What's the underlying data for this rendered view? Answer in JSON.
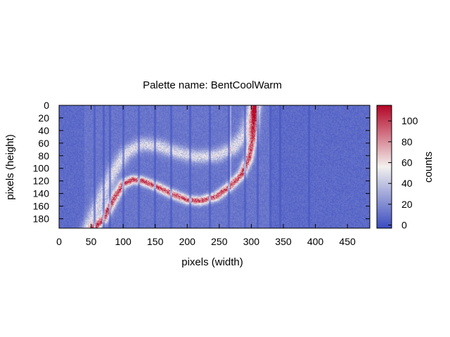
{
  "chart_data": {
    "type": "heatmap",
    "title": "Palette name: BentCoolWarm",
    "xlabel": "pixels (width)",
    "ylabel": "pixels (height)",
    "colorbar_label": "counts",
    "xlim": [
      0,
      485
    ],
    "ylim": [
      0,
      195
    ],
    "y_reversed": true,
    "clim": [
      -3,
      115
    ],
    "x_ticks": [
      0,
      50,
      100,
      150,
      200,
      250,
      300,
      350,
      400,
      450
    ],
    "y_ticks": [
      0,
      20,
      40,
      60,
      80,
      100,
      120,
      140,
      160,
      180
    ],
    "colorbar_ticks": [
      0,
      20,
      40,
      60,
      80,
      100
    ],
    "palette": {
      "name": "BentCoolWarm",
      "stops": [
        {
          "value": 0,
          "color": "#3b4cc0"
        },
        {
          "value": 0.5,
          "color": "#f2f0ee"
        },
        {
          "value": 1,
          "color": "#b40426"
        }
      ]
    },
    "background_counts": 8,
    "arc": {
      "description": "bright S-shaped arc",
      "points": [
        [
          55,
          195
        ],
        [
          70,
          180
        ],
        [
          85,
          150
        ],
        [
          100,
          125
        ],
        [
          115,
          118
        ],
        [
          130,
          120
        ],
        [
          150,
          128
        ],
        [
          175,
          140
        ],
        [
          200,
          150
        ],
        [
          220,
          152
        ],
        [
          245,
          145
        ],
        [
          265,
          130
        ],
        [
          285,
          110
        ],
        [
          296,
          85
        ],
        [
          302,
          55
        ],
        [
          305,
          25
        ],
        [
          306,
          0
        ]
      ],
      "peak_counts": 85
    },
    "halo": {
      "description": "faint upper arc",
      "points": [
        [
          45,
          195
        ],
        [
          65,
          150
        ],
        [
          85,
          105
        ],
        [
          105,
          75
        ],
        [
          130,
          62
        ],
        [
          155,
          65
        ],
        [
          185,
          75
        ],
        [
          215,
          82
        ],
        [
          245,
          80
        ],
        [
          270,
          70
        ],
        [
          290,
          45
        ],
        [
          300,
          15
        ],
        [
          304,
          0
        ]
      ],
      "peak_counts": 38
    },
    "dark_columns": [
      55,
      70,
      80,
      100,
      125,
      150,
      175,
      205,
      235,
      265,
      290,
      310,
      330,
      345,
      390
    ],
    "bright_column": {
      "x": 268,
      "y_range": [
        0,
        120
      ]
    }
  }
}
